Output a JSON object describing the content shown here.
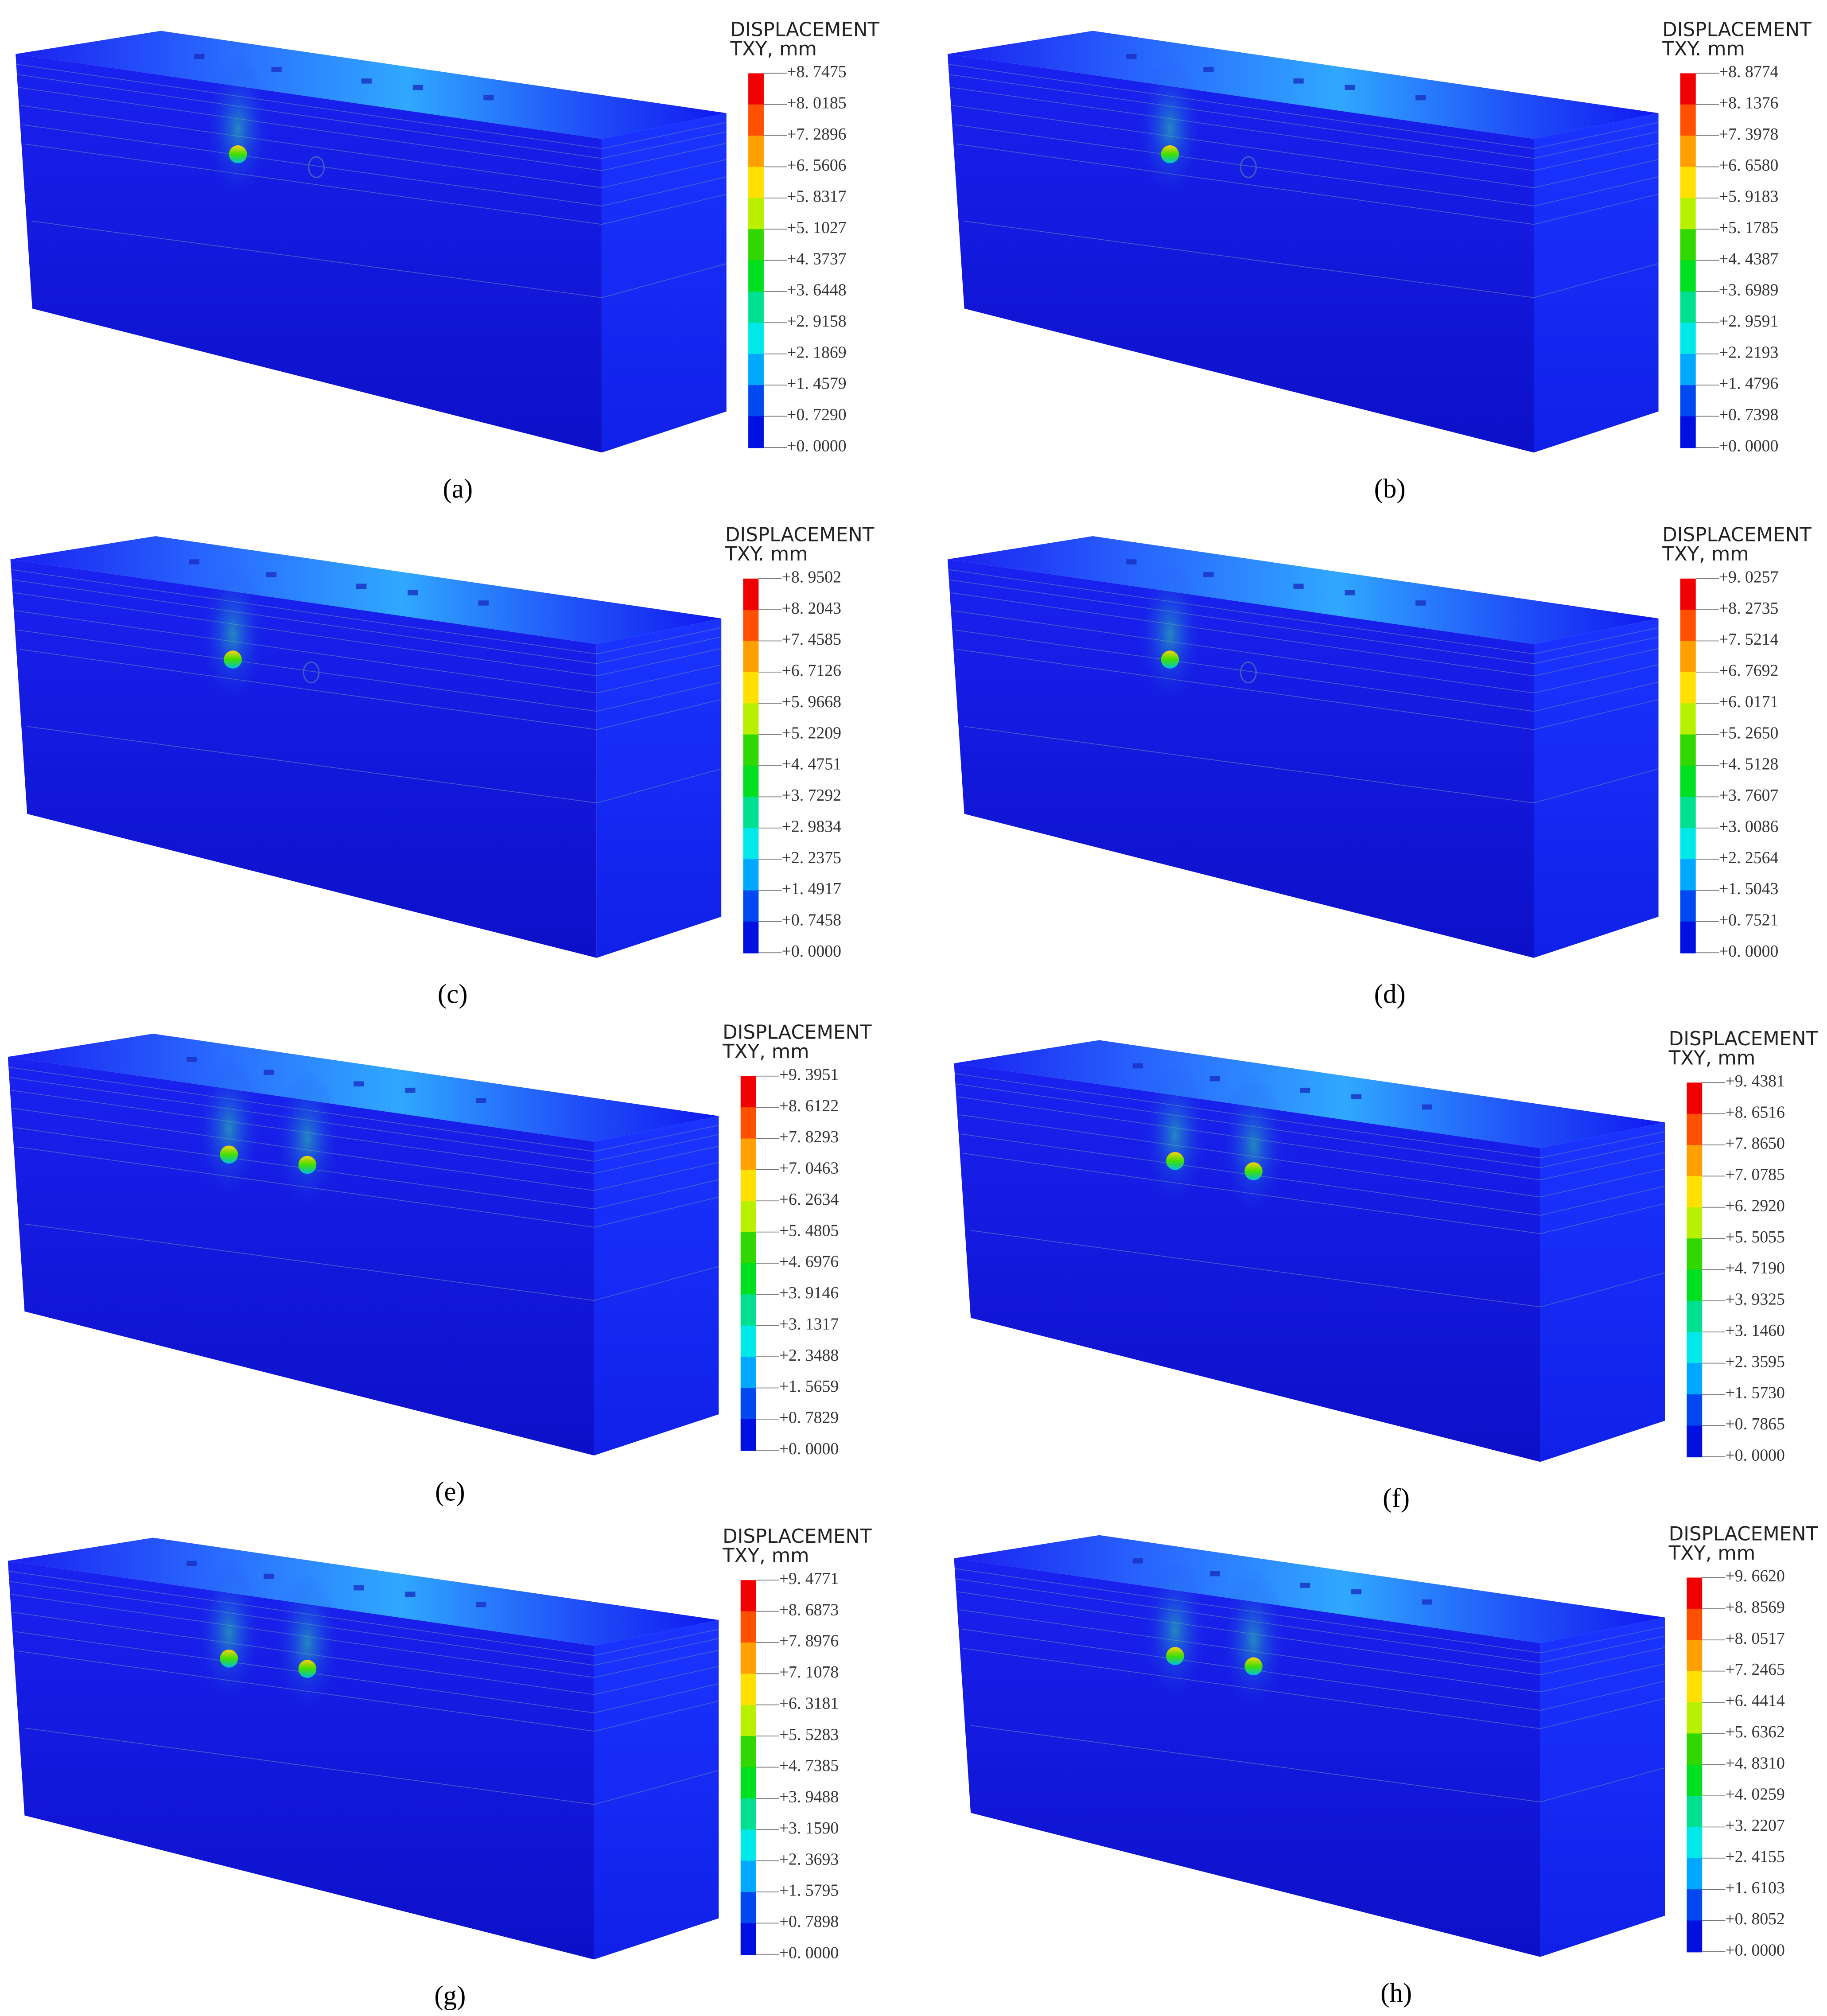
{
  "legend_colors": [
    "#f00000",
    "#ff5000",
    "#ffa000",
    "#ffe000",
    "#b8f000",
    "#30d800",
    "#00e020",
    "#00e090",
    "#00e8e8",
    "#00a8ff",
    "#0048f0",
    "#0010e0"
  ],
  "panels": [
    {
      "label": "(a)",
      "legend_title": "DISPLACEMENT",
      "legend_unit": "TXY, mm",
      "ticks": [
        "+8. 7475",
        "+8. 0185",
        "+7. 2896",
        "+6. 5606",
        "+5. 8317",
        "+5. 1027",
        "+4. 3737",
        "+3. 6448",
        "+2. 9158",
        "+2. 1869",
        "+1. 4579",
        "+0. 7290",
        "+0. 0000"
      ]
    },
    {
      "label": "(b)",
      "legend_title": "DISPLACEMENT",
      "legend_unit": "TXY. mm",
      "ticks": [
        "+8. 8774",
        "+8. 1376",
        "+7. 3978",
        "+6. 6580",
        "+5. 9183",
        "+5. 1785",
        "+4. 4387",
        "+3. 6989",
        "+2. 9591",
        "+2. 2193",
        "+1. 4796",
        "+0. 7398",
        "+0. 0000"
      ]
    },
    {
      "label": "(c)",
      "legend_title": "DISPLACEMENT",
      "legend_unit": "TXY. mm",
      "ticks": [
        "+8. 9502",
        "+8. 2043",
        "+7. 4585",
        "+6. 7126",
        "+5. 9668",
        "+5. 2209",
        "+4. 4751",
        "+3. 7292",
        "+2. 9834",
        "+2. 2375",
        "+1. 4917",
        "+0. 7458",
        "+0. 0000"
      ]
    },
    {
      "label": "(d)",
      "legend_title": "DISPLACEMENT",
      "legend_unit": "TXY, mm",
      "ticks": [
        "+9. 0257",
        "+8. 2735",
        "+7. 5214",
        "+6. 7692",
        "+6. 0171",
        "+5. 2650",
        "+4. 5128",
        "+3. 7607",
        "+3. 0086",
        "+2. 2564",
        "+1. 5043",
        "+0. 7521",
        "+0. 0000"
      ]
    },
    {
      "label": "(e)",
      "legend_title": "DISPLACEMENT",
      "legend_unit": "TXY, mm",
      "ticks": [
        "+9. 3951",
        "+8. 6122",
        "+7. 8293",
        "+7. 0463",
        "+6. 2634",
        "+5. 4805",
        "+4. 6976",
        "+3. 9146",
        "+3. 1317",
        "+2. 3488",
        "+1. 5659",
        "+0. 7829",
        "+0. 0000"
      ]
    },
    {
      "label": "(f)",
      "legend_title": "DISPLACEMENT",
      "legend_unit": "TXY, mm",
      "ticks": [
        "+9. 4381",
        "+8. 6516",
        "+7. 8650",
        "+7. 0785",
        "+6. 2920",
        "+5. 5055",
        "+4. 7190",
        "+3. 9325",
        "+3. 1460",
        "+2. 3595",
        "+1. 5730",
        "+0. 7865",
        "+0. 0000"
      ]
    },
    {
      "label": "(g)",
      "legend_title": "DISPLACEMENT",
      "legend_unit": "TXY, mm",
      "ticks": [
        "+9. 4771",
        "+8. 6873",
        "+7. 8976",
        "+7. 1078",
        "+6. 3181",
        "+5. 5283",
        "+4. 7385",
        "+3. 9488",
        "+3. 1590",
        "+2. 3693",
        "+1. 5795",
        "+0. 7898",
        "+0. 0000"
      ]
    },
    {
      "label": "(h)",
      "legend_title": "DISPLACEMENT",
      "legend_unit": "TXY, mm",
      "ticks": [
        "+9. 6620",
        "+8. 8569",
        "+8. 0517",
        "+7. 2465",
        "+6. 4414",
        "+5. 6362",
        "+4. 8310",
        "+4. 0259",
        "+3. 2207",
        "+2. 4155",
        "+1. 6103",
        "+0. 8052",
        "+0. 0000"
      ]
    }
  ]
}
